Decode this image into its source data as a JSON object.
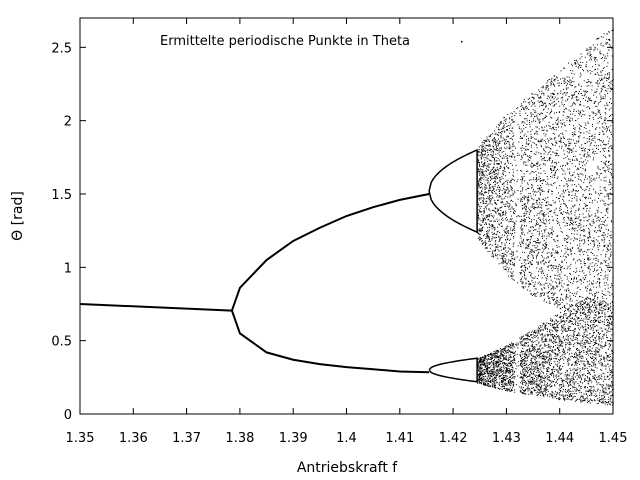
{
  "chart_data": {
    "type": "scatter",
    "title": "",
    "xlabel": "Antriebskraft f",
    "ylabel": "Θ [rad]",
    "xlim": [
      1.35,
      1.45
    ],
    "ylim": [
      0,
      2.7
    ],
    "x_ticks": [
      1.35,
      1.36,
      1.37,
      1.38,
      1.39,
      1.4,
      1.41,
      1.42,
      1.43,
      1.44,
      1.45
    ],
    "x_tick_labels": [
      "1.35",
      "1.36",
      "1.37",
      "1.38",
      "1.39",
      "1.4",
      "1.41",
      "1.42",
      "1.43",
      "1.44",
      "1.45"
    ],
    "y_ticks": [
      0,
      0.5,
      1,
      1.5,
      2,
      2.5
    ],
    "y_tick_labels": [
      "0",
      "0.5",
      "1",
      "1.5",
      "2",
      "2.5"
    ],
    "grid": false,
    "legend_position": "top",
    "series": [
      {
        "name": "Ermittelte periodische Punkte in Theta",
        "color": "#000000",
        "marker": "dot",
        "period1_branch": {
          "x": [
            1.35,
            1.3785
          ],
          "y": [
            0.75,
            0.705
          ]
        },
        "period2_upper_branch": {
          "x": [
            1.3785,
            1.38,
            1.385,
            1.39,
            1.395,
            1.4,
            1.405,
            1.41,
            1.4155
          ],
          "y": [
            0.705,
            0.86,
            1.05,
            1.18,
            1.27,
            1.35,
            1.41,
            1.46,
            1.5
          ]
        },
        "period2_lower_branch": {
          "x": [
            1.3785,
            1.38,
            1.385,
            1.39,
            1.395,
            1.4,
            1.405,
            1.41,
            1.4155
          ],
          "y": [
            0.705,
            0.55,
            0.42,
            0.37,
            0.34,
            0.32,
            0.305,
            0.29,
            0.285
          ]
        },
        "period_doubling_points": [
          1.3785,
          1.4155,
          1.421
        ],
        "chaos_onset": 1.4245,
        "chaos_upper_band": {
          "x": [
            1.4245,
            1.43,
            1.435,
            1.44,
            1.445,
            1.45
          ],
          "top": [
            1.82,
            2.05,
            2.2,
            2.35,
            2.5,
            2.66
          ],
          "bottom": [
            1.2,
            0.95,
            0.8,
            0.72,
            0.68,
            0.66
          ]
        },
        "chaos_lower_band": {
          "x": [
            1.4245,
            1.43,
            1.435,
            1.44,
            1.445,
            1.45
          ],
          "top": [
            0.38,
            0.47,
            0.58,
            0.7,
            0.8,
            0.75
          ],
          "bottom": [
            0.21,
            0.16,
            0.13,
            0.1,
            0.08,
            0.06
          ]
        },
        "periodic_windows": [
          1.4315,
          1.4325
        ]
      }
    ]
  }
}
